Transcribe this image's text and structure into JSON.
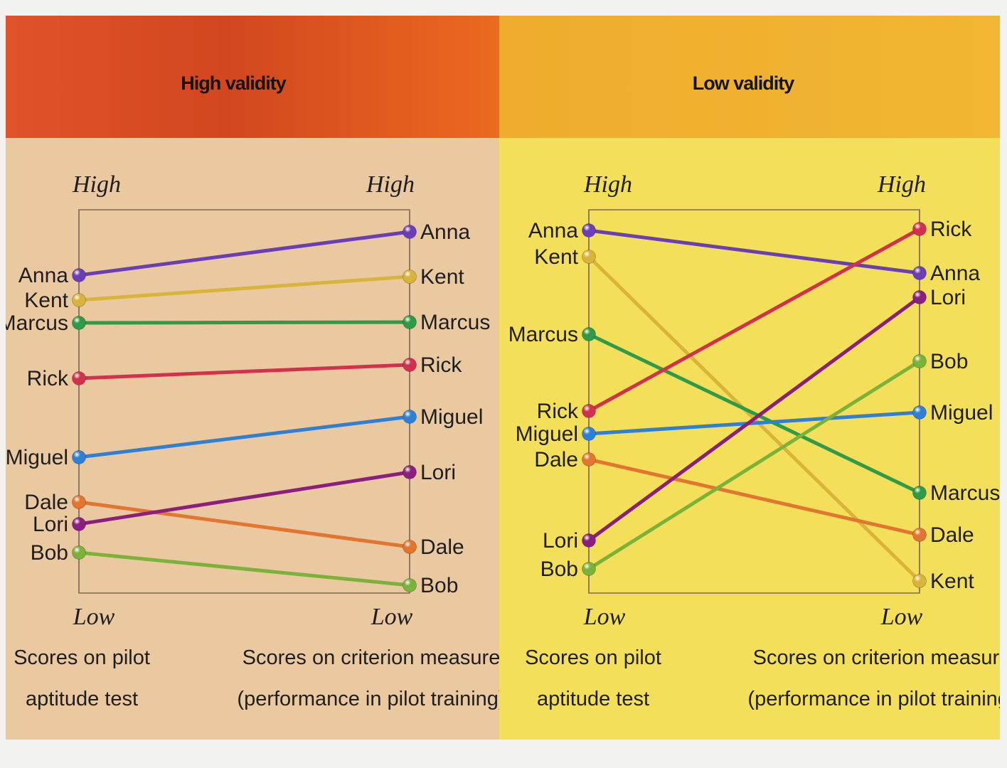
{
  "panels": [
    {
      "title": "High validity",
      "high_label": "High",
      "low_label": "Low",
      "left_caption": [
        "Scores on pilot",
        "aptitude test"
      ],
      "right_caption": [
        "Scores on criterion measure",
        "(performance in pilot training)"
      ],
      "left_order": [
        "Anna",
        "Kent",
        "Marcus",
        "Rick",
        "Miguel",
        "Dale",
        "Lori",
        "Bob"
      ],
      "right_order": [
        "Anna",
        "Kent",
        "Marcus",
        "Rick",
        "Miguel",
        "Lori",
        "Dale",
        "Bob"
      ]
    },
    {
      "title": "Low validity",
      "high_label": "High",
      "low_label": "Low",
      "left_caption": [
        "Scores on pilot",
        "aptitude test"
      ],
      "right_caption": [
        "Scores on criterion measure",
        "(performance in pilot training)"
      ],
      "left_order": [
        "Anna",
        "Kent",
        "Marcus",
        "Rick",
        "Miguel",
        "Dale",
        "Lori",
        "Bob"
      ],
      "right_order": [
        "Rick",
        "Anna",
        "Lori",
        "Bob",
        "Miguel",
        "Marcus",
        "Dale",
        "Kent"
      ]
    }
  ],
  "colors": {
    "Anna": "#6a3fb5",
    "Kent": "#d8b53a",
    "Marcus": "#2f9a47",
    "Rick": "#d2314e",
    "Miguel": "#2f7fd6",
    "Dale": "#e2752f",
    "Lori": "#8a1f7e",
    "Bob": "#7bb23a"
  }
}
